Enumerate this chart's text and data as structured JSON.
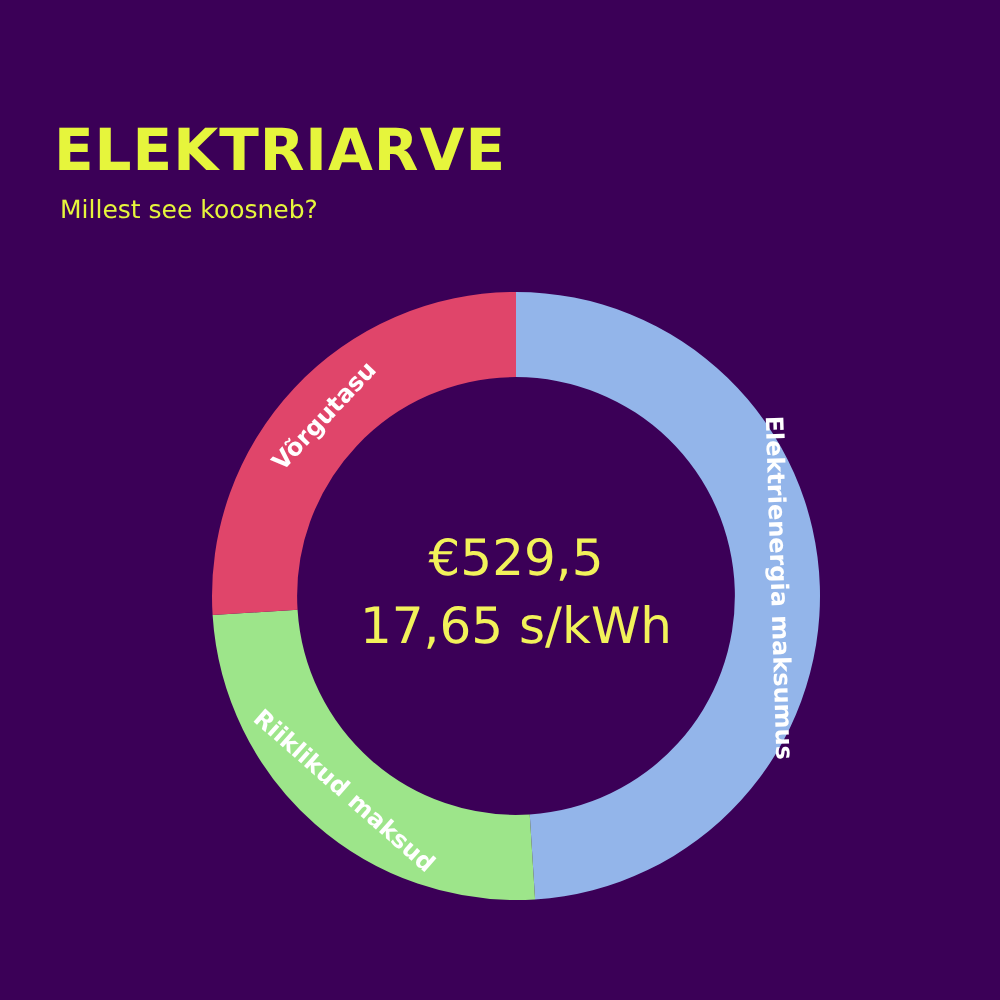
{
  "chart_data": {
    "type": "donut",
    "title": "ELEKTRIARVE",
    "subtitle": "Millest see koosneb?",
    "categories": [
      "Elektrienergia maksumus",
      "Riiklikud maksud",
      "Võrgutasu"
    ],
    "values": [
      49,
      25,
      26
    ],
    "colors": [
      "#93b5ea",
      "#9de58a",
      "#e0456a"
    ],
    "annotations": [
      "€529,5",
      "17,65 s/kWh"
    ]
  }
}
